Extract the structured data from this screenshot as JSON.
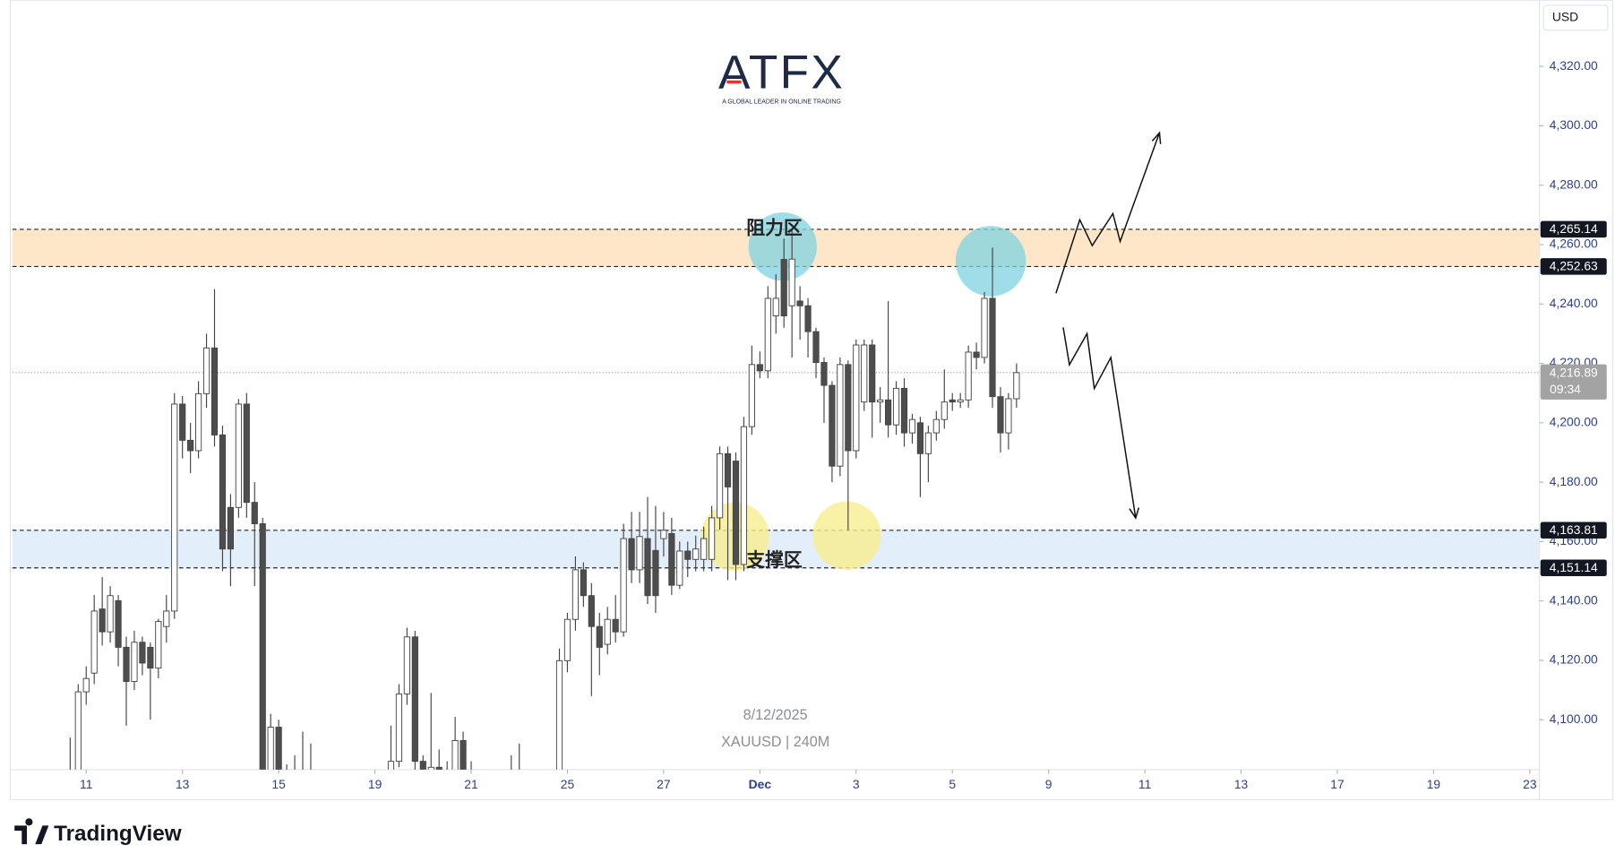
{
  "chart_data": {
    "type": "candlestick",
    "currency": "USD",
    "logo": {
      "name": "ATFX",
      "tagline": "A GLOBAL LEADER IN ONLINE TRADING"
    },
    "date": "8/12/2025",
    "symbol_label": "XAUUSD | 240M",
    "brand": "TradingView",
    "up_color": "#ffffff",
    "down_color": "#4d4d4d",
    "open": [
      4080,
      4078,
      4109.4,
      4115.7,
      4137.3,
      4129.6,
      4140.1,
      4124.4,
      4112.9,
      4126.1,
      4124.4,
      4117.4,
      4131.4,
      4136.6,
      4206.3,
      4194.1,
      4190.6,
      4209.8,
      4225.2,
      4195.9,
      4171.5,
      4171.5,
      4206.3,
      4173.2,
      4166,
      4072,
      4097.5,
      4080,
      4076,
      4082,
      4079,
      4075,
      4070,
      4065,
      4060,
      4062,
      4058,
      4064,
      4070,
      4075,
      4078,
      4086,
      4108.7,
      4127.9,
      4086,
      4078,
      4084,
      4080,
      4076,
      4093,
      4082,
      4078,
      4072,
      4068,
      4070,
      4066,
      4064,
      4074,
      4070,
      4068,
      4072,
      4082,
      4119.9,
      4133.8,
      4150.5,
      4141.8,
      4131.4,
      4125.4,
      4133.8,
      4129.6,
      4161,
      4150.5,
      4161,
      4157,
      4161,
      4162.7,
      4145.3,
      4156.8,
      4154,
      4154,
      4154,
      4168,
      4189.6,
      4187.1,
      4152.3,
      4198.7,
      4219.6,
      4217.5,
      4236,
      4255,
      4239.4,
      4241,
      4239.4,
      4230.7,
      4220.3,
      4212.6,
      4185.4,
      4219.6,
      4190.6,
      4207,
      4226.2,
      4207,
      4207.7,
      4199.3,
      4211.6,
      4196.6,
      4200,
      4189.6,
      4196.6,
      4201.1,
      4207.7,
      4207,
      4207.7,
      4223.8,
      4222,
      4241.9,
      4208.8,
      4196.6,
      4208.1
    ],
    "high": [
      4094,
      4112,
      4118,
      4142,
      4148,
      4145,
      4142,
      4128,
      4130,
      4128,
      4126,
      4134,
      4142,
      4210,
      4209,
      4200,
      4214,
      4230,
      4245,
      4199,
      4176,
      4208,
      4210,
      4180,
      4168,
      4102,
      4100,
      4085,
      4088,
      4096,
      4092,
      4080,
      4075,
      4070,
      4068,
      4066,
      4070,
      4076,
      4080,
      4082,
      4098,
      4112,
      4131,
      4130,
      4088,
      4109,
      4090,
      4086,
      4101,
      4096,
      4086,
      4082,
      4078,
      4074,
      4076,
      4088,
      4092,
      4080,
      4076,
      4074,
      4080,
      4124,
      4136,
      4155,
      4153,
      4146,
      4136,
      4138,
      4142,
      4166,
      4170,
      4170,
      4175,
      4172,
      4170,
      4168,
      4160,
      4160,
      4162,
      4165,
      4172,
      4192,
      4192,
      4190,
      4202,
      4226,
      4224,
      4246,
      4250,
      4262,
      4265,
      4246,
      4242,
      4232,
      4222,
      4214,
      4222,
      4221,
      4228,
      4228,
      4228,
      4212,
      4241,
      4214,
      4215,
      4203,
      4202,
      4199,
      4204,
      4218,
      4210,
      4210,
      4226,
      4227,
      4244,
      4259,
      4212,
      4210,
      4220
    ],
    "low": [
      4070,
      4075,
      4105,
      4112,
      4125,
      4126,
      4118,
      4098,
      4110,
      4115,
      4100,
      4114,
      4126,
      4134,
      4188,
      4183,
      4188,
      4205,
      4192,
      4150,
      4145,
      4168,
      4168,
      4145,
      4065,
      4068,
      4075,
      4065,
      4070,
      4072,
      4068,
      4062,
      4058,
      4055,
      4052,
      4050,
      4054,
      4060,
      4066,
      4070,
      4074,
      4084,
      4105,
      4082,
      4072,
      4072,
      4074,
      4070,
      4072,
      4078,
      4072,
      4068,
      4064,
      4060,
      4062,
      4058,
      4060,
      4066,
      4062,
      4060,
      4066,
      4078,
      4116,
      4130,
      4138,
      4108,
      4115,
      4122,
      4126,
      4128,
      4146,
      4146,
      4139,
      4136,
      4155,
      4142,
      4144,
      4148,
      4150,
      4150,
      4150,
      4164,
      4147,
      4147,
      4150,
      4196,
      4215,
      4215,
      4230,
      4232,
      4222,
      4228,
      4222,
      4215,
      4200,
      4180,
      4182,
      4163.8,
      4188,
      4204,
      4195,
      4200,
      4195,
      4196,
      4192,
      4193,
      4175,
      4180,
      4194,
      4198,
      4204,
      4205,
      4205,
      4218,
      4220,
      4205,
      4190,
      4191,
      4205
    ],
    "close": [
      4082,
      4109.4,
      4113.9,
      4136.6,
      4129.6,
      4141.8,
      4124.4,
      4112.9,
      4126.1,
      4119.1,
      4117.4,
      4133.1,
      4136.6,
      4206.3,
      4194.1,
      4190.6,
      4209.8,
      4225.2,
      4195.9,
      4157.5,
      4157.5,
      4206.3,
      4173.2,
      4166,
      4075,
      4097.5,
      4080,
      4076,
      4082,
      4079,
      4075,
      4070,
      4065,
      4060,
      4062,
      4058,
      4064,
      4070,
      4075,
      4078,
      4086,
      4108.7,
      4127.9,
      4086,
      4078,
      4084,
      4080,
      4076,
      4093,
      4082,
      4078,
      4072,
      4068,
      4070,
      4066,
      4064,
      4074,
      4070,
      4068,
      4072,
      4078,
      4119.9,
      4133.8,
      4150.5,
      4141.8,
      4131.4,
      4124.4,
      4133.8,
      4129.6,
      4161,
      4150.5,
      4161.7,
      4141.8,
      4141.8,
      4163.8,
      4145.3,
      4156.8,
      4154,
      4157.5,
      4161,
      4168,
      4189.6,
      4178.4,
      4152.3,
      4198.7,
      4219.6,
      4217.5,
      4241.9,
      4241.9,
      4236,
      4255.1,
      4239.4,
      4230.7,
      4220.3,
      4212.6,
      4185.4,
      4219.6,
      4190.6,
      4226.2,
      4226.2,
      4207,
      4207.7,
      4199.3,
      4211.6,
      4196.6,
      4201.1,
      4189.6,
      4196.6,
      4201.1,
      4207,
      4207,
      4207.7,
      4223.8,
      4222,
      4241.9,
      4208.8,
      4196.6,
      4208.1,
      4216.89
    ],
    "xlim": [
      -7.2,
      183.2
    ],
    "xticks": [
      {
        "value": 2,
        "label": "11"
      },
      {
        "value": 14,
        "label": "13"
      },
      {
        "value": 26,
        "label": "15"
      },
      {
        "value": 38,
        "label": "19"
      },
      {
        "value": 50,
        "label": "21"
      },
      {
        "value": 62,
        "label": "25"
      },
      {
        "value": 74,
        "label": "27"
      },
      {
        "value": 86,
        "label": "Dec"
      },
      {
        "value": 98,
        "label": "3"
      },
      {
        "value": 110,
        "label": "5"
      },
      {
        "value": 122,
        "label": "9"
      },
      {
        "value": 134,
        "label": "11"
      },
      {
        "value": 146,
        "label": "13"
      },
      {
        "value": 158,
        "label": "17"
      },
      {
        "value": 170,
        "label": "19"
      },
      {
        "value": 182,
        "label": "23"
      }
    ],
    "ylim": [
      4083.2,
      4342.3
    ],
    "yticks": [
      {
        "value": 4100,
        "label": "4,100.00"
      },
      {
        "value": 4120,
        "label": "4,120.00"
      },
      {
        "value": 4140,
        "label": "4,140.00"
      },
      {
        "value": 4160,
        "label": "4,160.00"
      },
      {
        "value": 4180,
        "label": "4,180.00"
      },
      {
        "value": 4200,
        "label": "4,200.00"
      },
      {
        "value": 4220,
        "label": "4,220.00"
      },
      {
        "value": 4240,
        "label": "4,240.00"
      },
      {
        "value": 4260,
        "label": "4,260.00"
      },
      {
        "value": 4280,
        "label": "4,280.00"
      },
      {
        "value": 4300,
        "label": "4,300.00"
      },
      {
        "value": 4320,
        "label": "4,320.00"
      }
    ],
    "zones": [
      {
        "label": "阻力区",
        "color": "#fde7c8",
        "top": {
          "value": 4265.14,
          "label": "4,265.14"
        },
        "bottom": {
          "value": 4252.63,
          "label": "4,252.63"
        }
      },
      {
        "label": "支撑区",
        "color": "#e3eefb",
        "top": {
          "value": 4163.81,
          "label": "4,163.81"
        },
        "bottom": {
          "value": 4151.14,
          "label": "4,151.14"
        }
      }
    ],
    "last": {
      "value": 4216.89,
      "label": "4,216.89",
      "countdown": "09:34"
    }
  }
}
